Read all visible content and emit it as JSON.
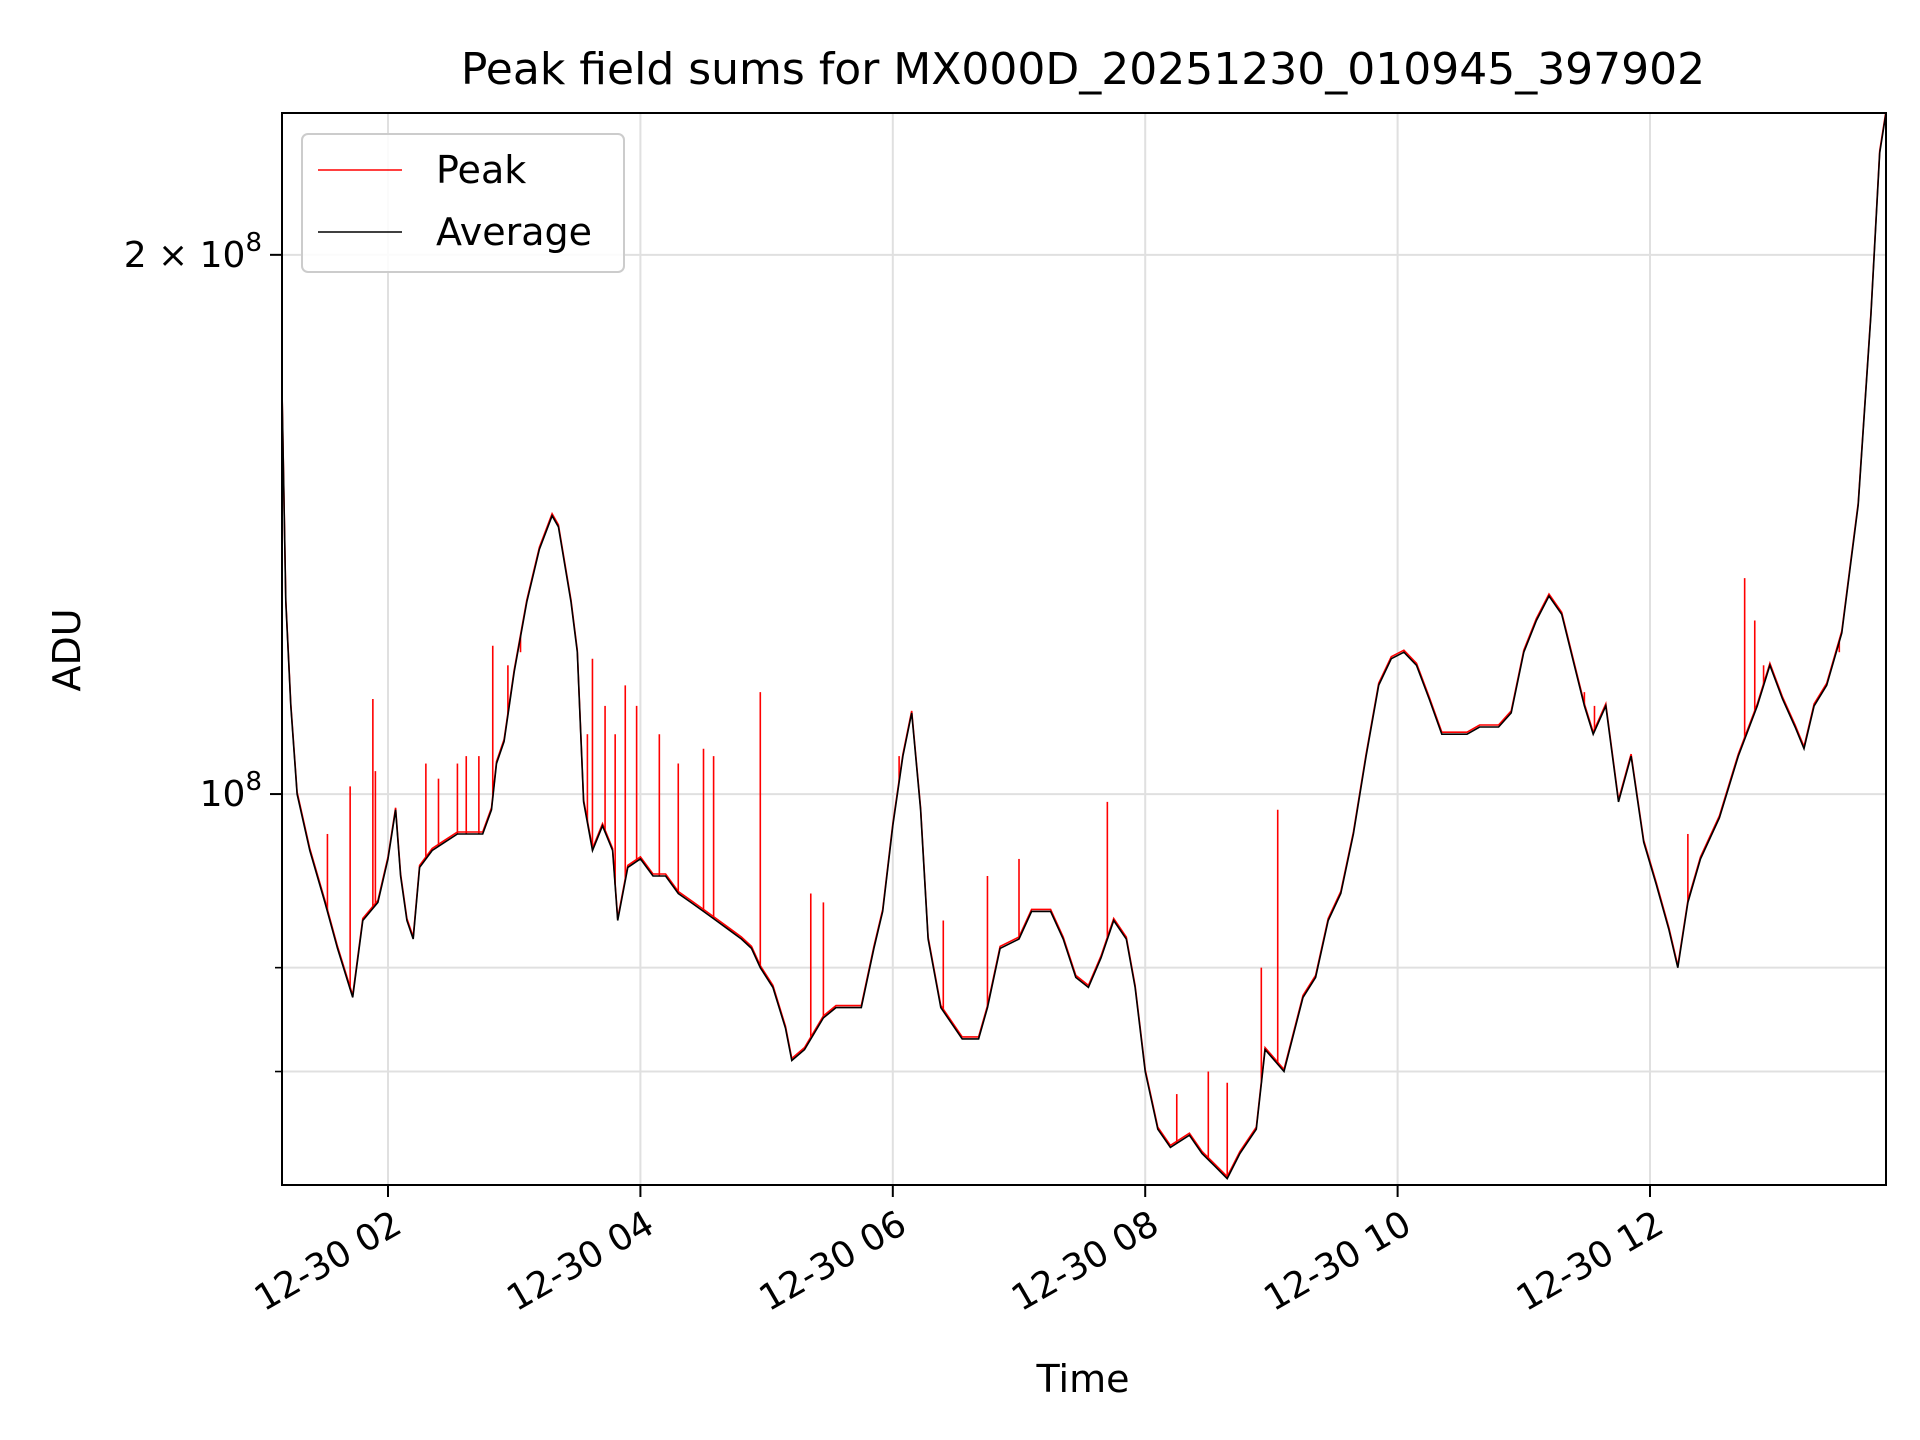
{
  "chart_data": {
    "type": "line",
    "title": "Peak field sums for MX000D_20251230_010945_397902",
    "xlabel": "Time",
    "ylabel": "ADU",
    "yscale": "log",
    "ylim": [
      60500000,
      240000000
    ],
    "xlim_hours": [
      1.16,
      13.87
    ],
    "grid": true,
    "legend_position": "upper-left",
    "x_ticks": [
      {
        "hour": 2,
        "label": "12-30 02"
      },
      {
        "hour": 4,
        "label": "12-30 04"
      },
      {
        "hour": 6,
        "label": "12-30 06"
      },
      {
        "hour": 8,
        "label": "12-30 08"
      },
      {
        "hour": 10,
        "label": "12-30 10"
      },
      {
        "hour": 12,
        "label": "12-30 12"
      }
    ],
    "y_major_ticks": [
      {
        "value": 100000000,
        "base": "10",
        "exp": "8",
        "coef": ""
      },
      {
        "value": 200000000,
        "base": "10",
        "exp": "8",
        "coef": "2 × "
      }
    ],
    "y_minor_ticks": [
      70000000,
      80000000
    ],
    "series": [
      {
        "name": "Average",
        "color": "#000000",
        "points": [
          [
            1.16,
            168000000
          ],
          [
            1.19,
            128000000
          ],
          [
            1.23,
            112000000
          ],
          [
            1.28,
            100000000
          ],
          [
            1.38,
            93000000
          ],
          [
            1.5,
            87000000
          ],
          [
            1.6,
            82000000
          ],
          [
            1.72,
            77000000
          ],
          [
            1.8,
            85000000
          ],
          [
            1.92,
            87000000
          ],
          [
            2.0,
            92000000
          ],
          [
            2.06,
            98000000
          ],
          [
            2.1,
            90000000
          ],
          [
            2.15,
            85000000
          ],
          [
            2.2,
            83000000
          ],
          [
            2.25,
            91000000
          ],
          [
            2.35,
            93000000
          ],
          [
            2.45,
            94000000
          ],
          [
            2.55,
            95000000
          ],
          [
            2.65,
            95000000
          ],
          [
            2.75,
            95000000
          ],
          [
            2.82,
            98000000
          ],
          [
            2.86,
            104000000
          ],
          [
            2.92,
            107000000
          ],
          [
            3.0,
            117000000
          ],
          [
            3.1,
            128000000
          ],
          [
            3.2,
            137000000
          ],
          [
            3.3,
            143000000
          ],
          [
            3.35,
            141000000
          ],
          [
            3.45,
            128000000
          ],
          [
            3.5,
            120000000
          ],
          [
            3.55,
            99000000
          ],
          [
            3.62,
            93000000
          ],
          [
            3.7,
            96000000
          ],
          [
            3.78,
            93000000
          ],
          [
            3.82,
            85000000
          ],
          [
            3.9,
            91000000
          ],
          [
            4.0,
            92000000
          ],
          [
            4.1,
            90000000
          ],
          [
            4.2,
            90000000
          ],
          [
            4.3,
            88000000
          ],
          [
            4.4,
            87000000
          ],
          [
            4.5,
            86000000
          ],
          [
            4.6,
            85000000
          ],
          [
            4.7,
            84000000
          ],
          [
            4.8,
            83000000
          ],
          [
            4.88,
            82000000
          ],
          [
            4.95,
            80000000
          ],
          [
            5.05,
            78000000
          ],
          [
            5.15,
            74000000
          ],
          [
            5.2,
            71000000
          ],
          [
            5.3,
            72000000
          ],
          [
            5.45,
            75000000
          ],
          [
            5.55,
            76000000
          ],
          [
            5.7,
            76000000
          ],
          [
            5.75,
            76000000
          ],
          [
            5.85,
            82000000
          ],
          [
            5.92,
            86000000
          ],
          [
            6.0,
            96000000
          ],
          [
            6.08,
            105000000
          ],
          [
            6.15,
            111000000
          ],
          [
            6.22,
            98000000
          ],
          [
            6.28,
            83000000
          ],
          [
            6.38,
            76000000
          ],
          [
            6.55,
            73000000
          ],
          [
            6.68,
            73000000
          ],
          [
            6.75,
            76000000
          ],
          [
            6.85,
            82000000
          ],
          [
            7.0,
            83000000
          ],
          [
            7.1,
            86000000
          ],
          [
            7.25,
            86000000
          ],
          [
            7.35,
            83000000
          ],
          [
            7.45,
            79000000
          ],
          [
            7.55,
            78000000
          ],
          [
            7.65,
            81000000
          ],
          [
            7.75,
            85000000
          ],
          [
            7.85,
            83000000
          ],
          [
            7.92,
            78000000
          ],
          [
            8.0,
            70000000
          ],
          [
            8.1,
            65000000
          ],
          [
            8.2,
            63500000
          ],
          [
            8.35,
            64500000
          ],
          [
            8.45,
            63000000
          ],
          [
            8.55,
            62000000
          ],
          [
            8.65,
            61000000
          ],
          [
            8.75,
            63000000
          ],
          [
            8.88,
            65000000
          ],
          [
            8.95,
            72000000
          ],
          [
            9.1,
            70000000
          ],
          [
            9.25,
            77000000
          ],
          [
            9.35,
            79000000
          ],
          [
            9.45,
            85000000
          ],
          [
            9.55,
            88000000
          ],
          [
            9.65,
            95000000
          ],
          [
            9.75,
            105000000
          ],
          [
            9.85,
            115000000
          ],
          [
            9.95,
            119000000
          ],
          [
            10.05,
            120000000
          ],
          [
            10.15,
            118000000
          ],
          [
            10.25,
            113000000
          ],
          [
            10.35,
            108000000
          ],
          [
            10.45,
            108000000
          ],
          [
            10.55,
            108000000
          ],
          [
            10.65,
            109000000
          ],
          [
            10.8,
            109000000
          ],
          [
            10.9,
            111000000
          ],
          [
            11.0,
            120000000
          ],
          [
            11.1,
            125000000
          ],
          [
            11.2,
            129000000
          ],
          [
            11.3,
            126000000
          ],
          [
            11.4,
            118000000
          ],
          [
            11.48,
            112000000
          ],
          [
            11.55,
            108000000
          ],
          [
            11.65,
            112000000
          ],
          [
            11.75,
            99000000
          ],
          [
            11.85,
            105000000
          ],
          [
            11.95,
            94000000
          ],
          [
            12.05,
            89000000
          ],
          [
            12.15,
            84000000
          ],
          [
            12.22,
            80000000
          ],
          [
            12.3,
            87000000
          ],
          [
            12.4,
            92000000
          ],
          [
            12.55,
            97000000
          ],
          [
            12.7,
            105000000
          ],
          [
            12.85,
            112000000
          ],
          [
            12.95,
            118000000
          ],
          [
            13.05,
            113000000
          ],
          [
            13.15,
            109000000
          ],
          [
            13.22,
            106000000
          ],
          [
            13.3,
            112000000
          ],
          [
            13.4,
            115000000
          ],
          [
            13.52,
            123000000
          ],
          [
            13.65,
            145000000
          ],
          [
            13.75,
            185000000
          ],
          [
            13.82,
            228000000
          ],
          [
            13.87,
            240000000
          ]
        ]
      },
      {
        "name": "Peak",
        "color": "#ff0000",
        "spikes": [
          [
            1.52,
            95000000
          ],
          [
            1.7,
            101000000
          ],
          [
            1.88,
            113000000
          ],
          [
            1.9,
            103000000
          ],
          [
            2.3,
            104000000
          ],
          [
            2.4,
            102000000
          ],
          [
            2.55,
            104000000
          ],
          [
            2.62,
            105000000
          ],
          [
            2.72,
            105000000
          ],
          [
            2.83,
            121000000
          ],
          [
            2.95,
            118000000
          ],
          [
            3.05,
            120000000
          ],
          [
            3.58,
            108000000
          ],
          [
            3.62,
            119000000
          ],
          [
            3.72,
            112000000
          ],
          [
            3.8,
            108000000
          ],
          [
            3.88,
            115000000
          ],
          [
            3.97,
            112000000
          ],
          [
            4.15,
            108000000
          ],
          [
            4.3,
            104000000
          ],
          [
            4.5,
            106000000
          ],
          [
            4.58,
            105000000
          ],
          [
            4.95,
            114000000
          ],
          [
            5.35,
            88000000
          ],
          [
            5.45,
            87000000
          ],
          [
            6.05,
            105000000
          ],
          [
            6.4,
            85000000
          ],
          [
            6.75,
            90000000
          ],
          [
            7.0,
            92000000
          ],
          [
            7.7,
            99000000
          ],
          [
            8.25,
            68000000
          ],
          [
            8.5,
            70000000
          ],
          [
            8.65,
            69000000
          ],
          [
            8.92,
            80000000
          ],
          [
            9.05,
            98000000
          ],
          [
            11.48,
            114000000
          ],
          [
            11.56,
            112000000
          ],
          [
            11.62,
            111000000
          ],
          [
            12.3,
            95000000
          ],
          [
            12.75,
            132000000
          ],
          [
            12.83,
            125000000
          ],
          [
            12.9,
            118000000
          ],
          [
            13.5,
            120000000
          ]
        ]
      }
    ]
  }
}
